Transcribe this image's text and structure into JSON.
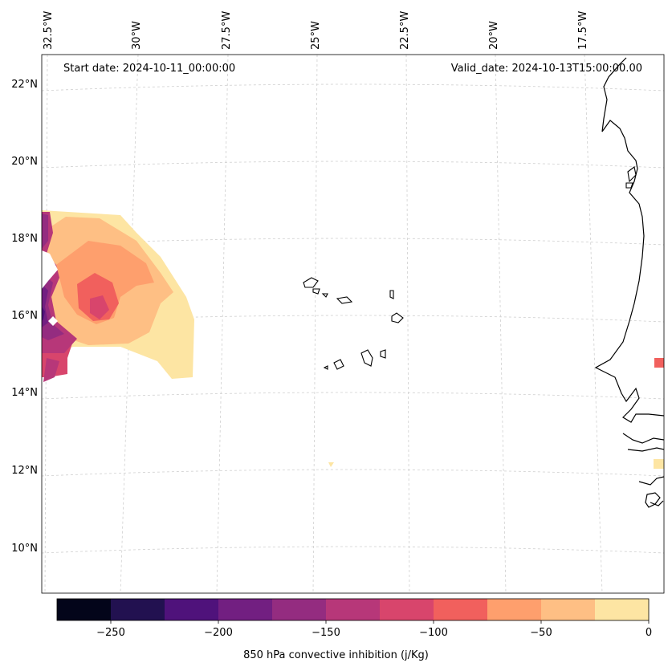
{
  "header": {
    "start_date": "Start date: 2024-10-11_00:00:00",
    "valid_date": "Valid_date: 2024-10-13T15:00:00.00"
  },
  "longitude_labels": [
    "32.5°W",
    "30°W",
    "27.5°W",
    "25°W",
    "22.5°W",
    "20°W",
    "17.5°W"
  ],
  "latitude_labels": [
    "22°N",
    "20°N",
    "18°N",
    "16°N",
    "14°N",
    "12°N",
    "10°N"
  ],
  "colorbar": {
    "label": "850 hPa convective inhibition (j/Kg)",
    "tick_labels": [
      "−250",
      "−200",
      "−150",
      "−100",
      "−50",
      "0"
    ],
    "levels": [
      -275,
      -250,
      -225,
      -200,
      -175,
      -150,
      -125,
      -100,
      -75,
      -50,
      -25,
      0
    ],
    "colors": [
      "#03051a",
      "#221150",
      "#4f127b",
      "#721f81",
      "#942c80",
      "#b73779",
      "#d8456c",
      "#f1605d",
      "#fe9f6d",
      "#febf84",
      "#fde5a3"
    ]
  },
  "map": {
    "features": [
      "cape-verde-islands",
      "west-africa-coastline",
      "cin-field-west"
    ],
    "gridlines": "dashed"
  }
}
